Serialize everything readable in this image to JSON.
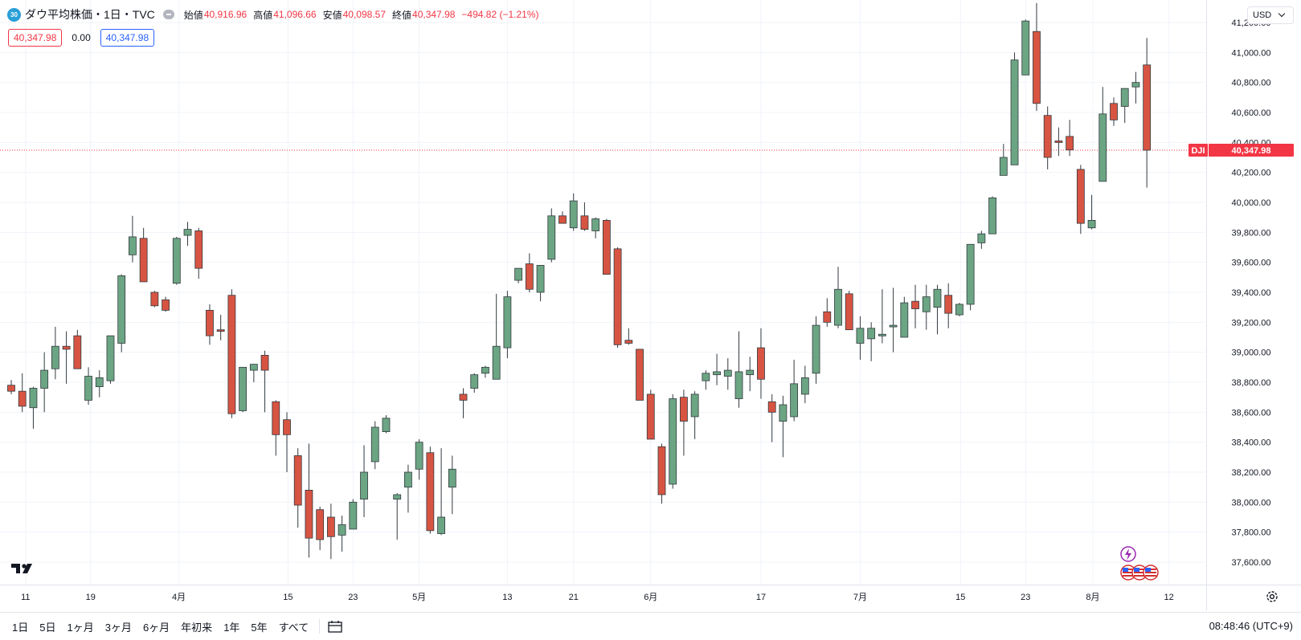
{
  "header": {
    "symbol_badge": "30",
    "title": "ダウ平均株価・1日・TVC",
    "ohlc": [
      {
        "label": "始値",
        "value": "40,916.96"
      },
      {
        "label": "高値",
        "value": "41,096.66"
      },
      {
        "label": "安値",
        "value": "40,098.57"
      },
      {
        "label": "終値",
        "value": "40,347.98"
      },
      {
        "label": "",
        "value": "−494.82 (−1.21%)"
      }
    ],
    "pills": {
      "sell": "40,347.98",
      "spread": "0.00",
      "buy": "40,347.98"
    }
  },
  "currency": {
    "label": "USD"
  },
  "price_axis": {
    "ticks": [
      "41,200.00",
      "41,000.00",
      "40,800.00",
      "40,600.00",
      "40,400.00",
      "40,200.00",
      "40,000.00",
      "39,800.00",
      "39,600.00",
      "39,400.00",
      "39,200.00",
      "39,000.00",
      "38,800.00",
      "38,600.00",
      "38,400.00",
      "38,200.00",
      "38,000.00",
      "37,800.00",
      "37,600.00"
    ],
    "last_label": {
      "symbol": "DJI",
      "value": "40,347.98"
    }
  },
  "time_axis": {
    "labels": [
      "11",
      "19",
      "4月",
      "15",
      "23",
      "5月",
      "13",
      "21",
      "6月",
      "17",
      "7月",
      "15",
      "23",
      "8月",
      "12"
    ]
  },
  "bottom_bar": {
    "ranges": [
      "1日",
      "5日",
      "1ヶ月",
      "3ヶ月",
      "6ヶ月",
      "年初来",
      "1年",
      "5年",
      "すべて"
    ],
    "clock": "08:48:46 (UTC+9)"
  },
  "icons": {
    "logo": "tradingview-logo-icon",
    "calendar": "calendar-range-icon",
    "settings": "gear-icon",
    "event": "lightning-event-icon",
    "flags": "us-flag-icon"
  },
  "colors": {
    "up": "#26a69a",
    "up_fill": "#6ba583",
    "down": "#d75442",
    "grid": "#f0f3fa",
    "price_line": "#f23645"
  },
  "chart_data": {
    "type": "candlestick",
    "title": "ダウ平均株価・1日・TVC",
    "ylim": [
      37450,
      41350
    ],
    "last_price": 40347.98,
    "candles": [
      [
        38780,
        38815,
        38720,
        38740
      ],
      [
        38740,
        38860,
        38600,
        38640
      ],
      [
        38630,
        38770,
        38490,
        38760
      ],
      [
        38760,
        39000,
        38600,
        38880
      ],
      [
        38890,
        39170,
        38820,
        39040
      ],
      [
        39040,
        39140,
        38790,
        39020
      ],
      [
        39110,
        39150,
        38900,
        38890
      ],
      [
        38680,
        38900,
        38650,
        38840
      ],
      [
        38770,
        38880,
        38700,
        38830
      ],
      [
        38810,
        39100,
        38790,
        39110
      ],
      [
        39060,
        39520,
        39000,
        39510
      ],
      [
        39650,
        39910,
        39600,
        39770
      ],
      [
        39760,
        39830,
        39470,
        39470
      ],
      [
        39400,
        39410,
        39300,
        39310
      ],
      [
        39350,
        39370,
        39270,
        39280
      ],
      [
        39460,
        39770,
        39450,
        39760
      ],
      [
        39780,
        39870,
        39710,
        39820
      ],
      [
        39810,
        39830,
        39490,
        39560
      ],
      [
        39280,
        39320,
        39050,
        39110
      ],
      [
        39150,
        39250,
        39080,
        39140
      ],
      [
        39380,
        39420,
        38560,
        38590
      ],
      [
        38610,
        38900,
        38600,
        38900
      ],
      [
        38880,
        38920,
        38800,
        38920
      ],
      [
        38980,
        39010,
        38600,
        38880
      ],
      [
        38670,
        38680,
        38310,
        38450
      ],
      [
        38550,
        38600,
        38200,
        38450
      ],
      [
        38310,
        38360,
        37830,
        37980
      ],
      [
        38080,
        38390,
        37630,
        37760
      ],
      [
        37950,
        37970,
        37680,
        37750
      ],
      [
        37900,
        37990,
        37620,
        37770
      ],
      [
        37780,
        37910,
        37670,
        37850
      ],
      [
        37820,
        38020,
        37820,
        38000
      ],
      [
        38020,
        38380,
        37900,
        38200
      ],
      [
        38270,
        38540,
        38220,
        38500
      ],
      [
        38470,
        38580,
        38460,
        38560
      ],
      [
        38020,
        38060,
        37750,
        38050
      ],
      [
        38100,
        38250,
        37930,
        38200
      ],
      [
        38220,
        38420,
        38150,
        38400
      ],
      [
        38330,
        38370,
        37790,
        37810
      ],
      [
        37790,
        38360,
        37780,
        37900
      ],
      [
        38100,
        38310,
        37920,
        38220
      ],
      [
        38720,
        38760,
        38560,
        38680
      ],
      [
        38760,
        38860,
        38730,
        38850
      ],
      [
        38860,
        38910,
        38830,
        38900
      ],
      [
        38820,
        39390,
        38820,
        39040
      ],
      [
        39030,
        39410,
        38960,
        39370
      ],
      [
        39480,
        39560,
        39460,
        39560
      ],
      [
        39590,
        39660,
        39400,
        39420
      ],
      [
        39400,
        39570,
        39340,
        39580
      ],
      [
        39620,
        39960,
        39600,
        39910
      ],
      [
        39910,
        39940,
        39880,
        39860
      ],
      [
        39830,
        40060,
        39810,
        40010
      ],
      [
        39910,
        40000,
        39810,
        39820
      ],
      [
        39810,
        39900,
        39760,
        39890
      ],
      [
        39880,
        39890,
        39530,
        39520
      ],
      [
        39690,
        39700,
        39030,
        39050
      ],
      [
        39080,
        39160,
        39050,
        39060
      ],
      [
        39020,
        39020,
        38690,
        38680
      ],
      [
        38720,
        38750,
        38430,
        38420
      ],
      [
        38370,
        38390,
        37990,
        38050
      ],
      [
        38120,
        38720,
        38090,
        38690
      ],
      [
        38700,
        38750,
        38310,
        38540
      ],
      [
        38570,
        38740,
        38420,
        38720
      ],
      [
        38810,
        38880,
        38750,
        38860
      ],
      [
        38850,
        38990,
        38780,
        38870
      ],
      [
        38840,
        38960,
        38750,
        38880
      ],
      [
        38690,
        39140,
        38630,
        38870
      ],
      [
        38850,
        38970,
        38740,
        38880
      ],
      [
        39030,
        39160,
        38690,
        38820
      ],
      [
        38670,
        38720,
        38400,
        38600
      ],
      [
        38540,
        38710,
        38300,
        38650
      ],
      [
        38570,
        38950,
        38540,
        38790
      ],
      [
        38720,
        38910,
        38660,
        38830
      ],
      [
        38860,
        39240,
        38790,
        39180
      ],
      [
        39270,
        39360,
        39170,
        39200
      ],
      [
        39180,
        39570,
        39160,
        39420
      ],
      [
        39390,
        39410,
        39150,
        39150
      ],
      [
        39060,
        39240,
        38950,
        39160
      ],
      [
        39090,
        39200,
        38940,
        39160
      ],
      [
        39110,
        39420,
        39060,
        39120
      ],
      [
        39180,
        39430,
        39000,
        39180
      ],
      [
        39100,
        39370,
        39100,
        39330
      ],
      [
        39340,
        39450,
        39160,
        39290
      ],
      [
        39270,
        39450,
        39150,
        39370
      ],
      [
        39300,
        39450,
        39120,
        39420
      ],
      [
        39380,
        39460,
        39160,
        39260
      ],
      [
        39250,
        39330,
        39240,
        39320
      ],
      [
        39320,
        39710,
        39280,
        39720
      ],
      [
        39730,
        39810,
        39690,
        39790
      ],
      [
        39790,
        40040,
        39790,
        40030
      ],
      [
        40180,
        40390,
        40180,
        40300
      ],
      [
        40250,
        41000,
        40280,
        40950
      ],
      [
        40850,
        41220,
        40880,
        41210
      ],
      [
        41140,
        41330,
        40610,
        40660
      ],
      [
        40580,
        40640,
        40220,
        40300
      ],
      [
        40410,
        40500,
        40310,
        40400
      ],
      [
        40440,
        40550,
        40310,
        40350
      ],
      [
        40220,
        40250,
        39790,
        39860
      ],
      [
        39830,
        40050,
        39820,
        39880
      ],
      [
        40140,
        40770,
        40140,
        40590
      ],
      [
        40660,
        40700,
        40510,
        40550
      ],
      [
        40640,
        40740,
        40530,
        40760
      ],
      [
        40770,
        40870,
        40660,
        40800
      ],
      [
        40916.96,
        41096.66,
        40098.57,
        40347.98
      ]
    ]
  }
}
